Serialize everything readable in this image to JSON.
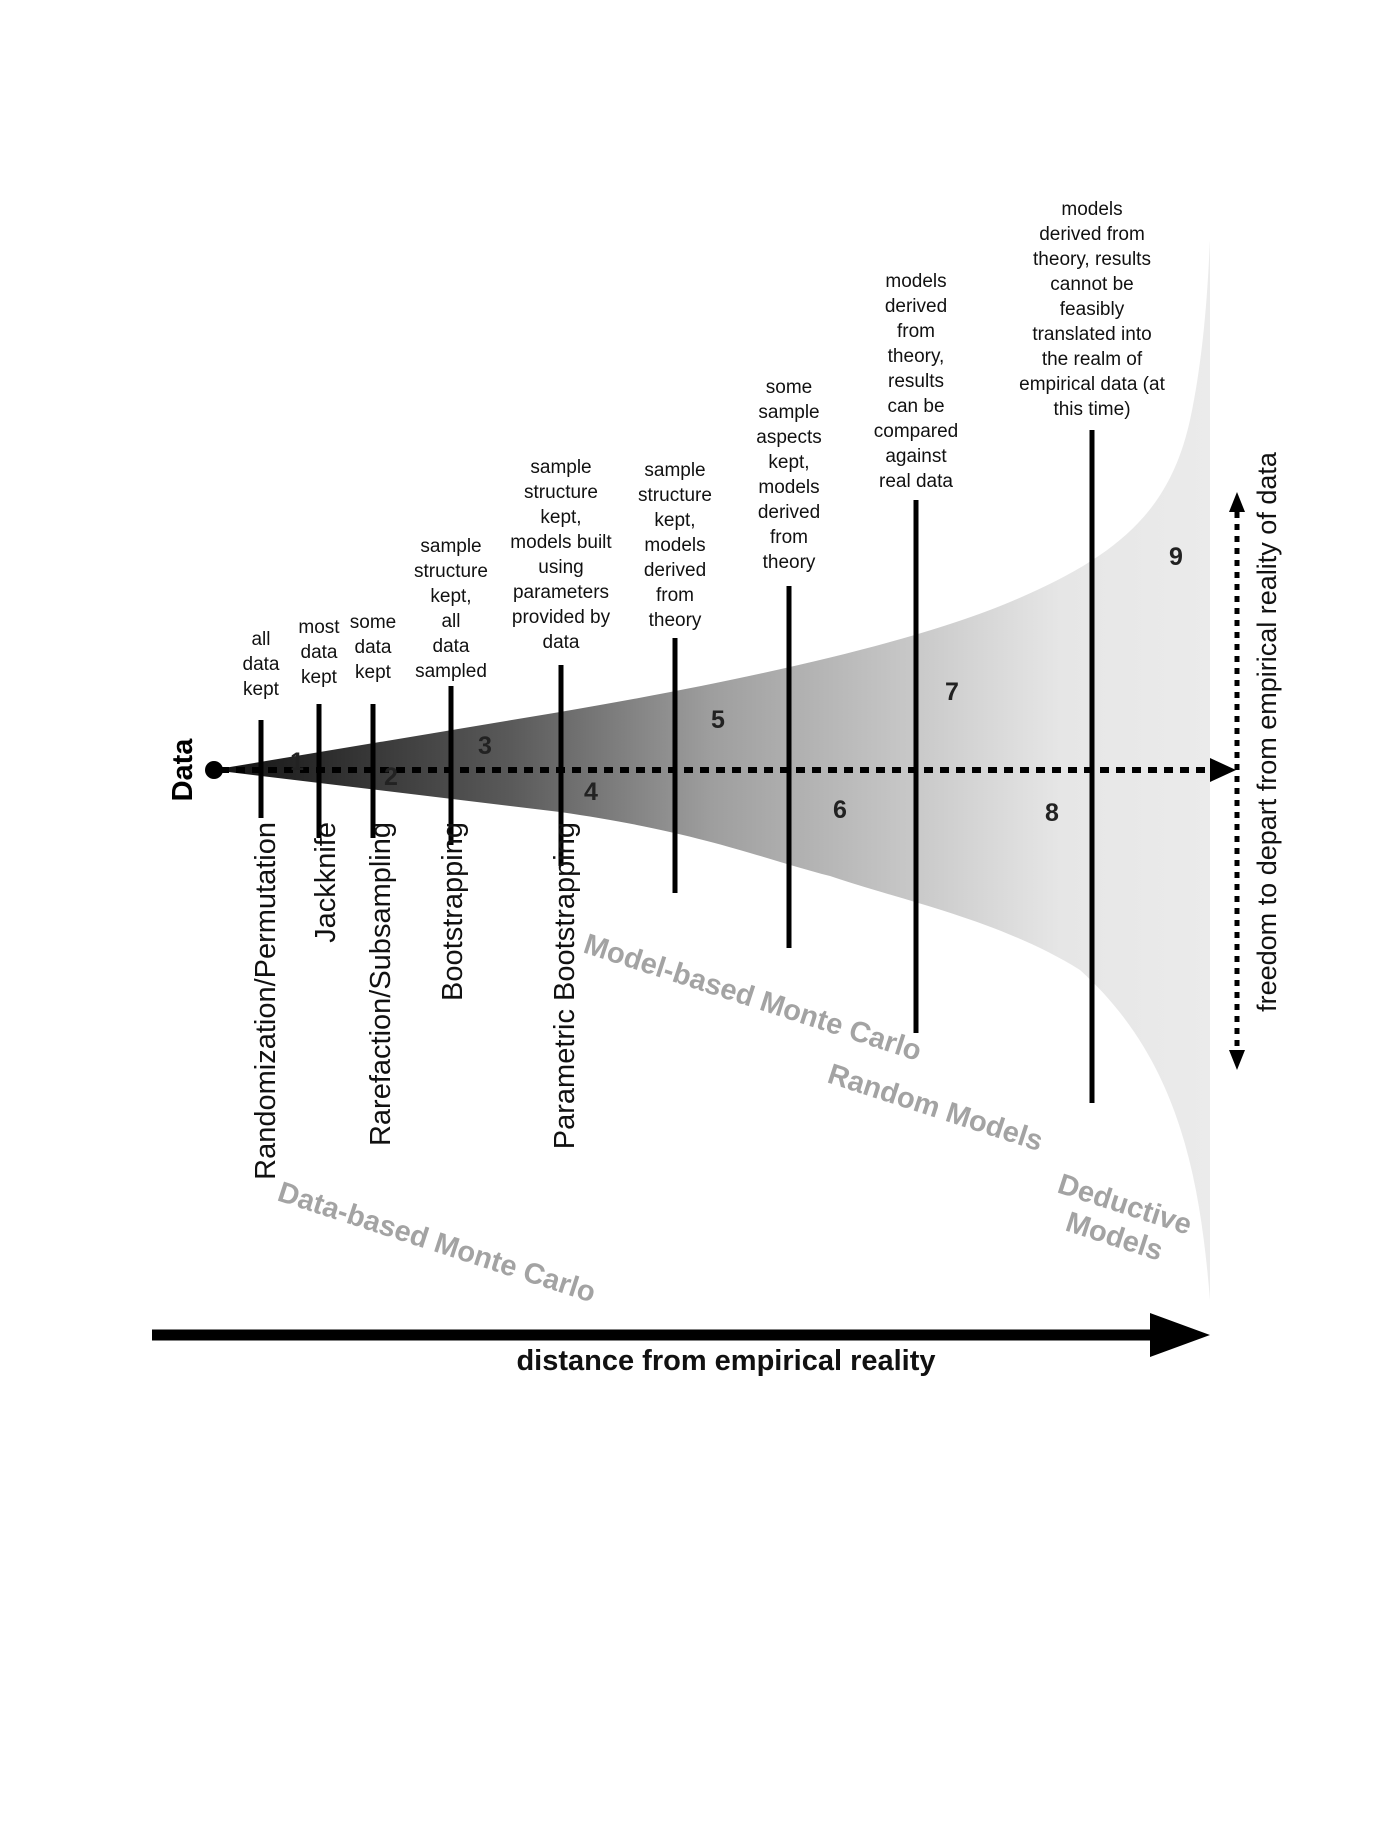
{
  "origin_label": "Data",
  "x_axis_label": "distance from empirical reality",
  "y_axis_label": "freedom to depart from empirical reality of data",
  "methods": [
    {
      "id": "randomization",
      "label": "Randomization/Permutation",
      "desc": [
        "all",
        "data",
        "kept"
      ]
    },
    {
      "id": "jackknife",
      "label": "Jackknife",
      "desc": [
        "most",
        "data",
        "kept"
      ]
    },
    {
      "id": "rarefaction",
      "label": "Rarefaction/Subsampling",
      "desc": [
        "some",
        "data",
        "kept"
      ]
    },
    {
      "id": "bootstrapping",
      "label": "Bootstrapping",
      "desc": [
        "sample",
        "structure",
        "kept,",
        "all",
        "data",
        "sampled"
      ]
    },
    {
      "id": "parametric-bootstrapping",
      "label": "Parametric Bootstrapping",
      "desc": [
        "sample",
        "structure",
        "kept,",
        "models built",
        "using",
        "parameters",
        "provided by",
        "data"
      ]
    },
    {
      "id": "model-5",
      "label": "",
      "desc": [
        "sample",
        "structure",
        "kept,",
        "models",
        "derived",
        "from",
        "theory"
      ]
    },
    {
      "id": "model-6",
      "label": "",
      "desc": [
        "some",
        "sample",
        "aspects",
        "kept,",
        "models",
        "derived",
        "from",
        "theory"
      ]
    },
    {
      "id": "model-7",
      "label": "",
      "desc": [
        "models",
        "derived",
        "from",
        "theory,",
        "results",
        "can be",
        "compared",
        "against",
        "real data"
      ]
    },
    {
      "id": "model-8",
      "label": "",
      "desc": [
        "models",
        "derived from",
        "theory, results",
        "cannot be",
        "feasibly",
        "translated into",
        "the realm of",
        "empirical data (at",
        "this time)"
      ]
    }
  ],
  "zones": [
    "1",
    "2",
    "3",
    "4",
    "5",
    "6",
    "7",
    "8",
    "9"
  ],
  "categories": {
    "data_based": "Data-based Monte Carlo",
    "model_based": "Model-based Monte Carlo",
    "random_models": "Random Models",
    "deductive": [
      "Deductive",
      "Models"
    ]
  },
  "colors": {
    "line": "#000000",
    "gradient_dark": "#1a1a1a",
    "gradient_mid": "#9a9a9a",
    "gradient_light": "#e8e8e8",
    "category_text": "#a3a3a3"
  }
}
